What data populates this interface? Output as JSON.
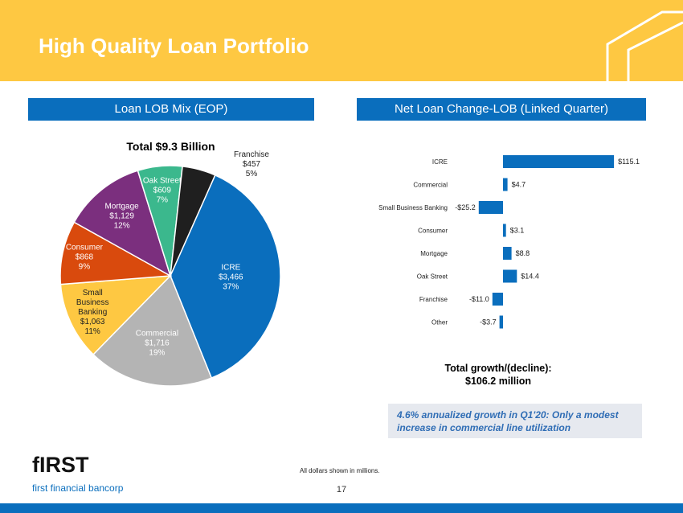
{
  "header": {
    "title": "High Quality Loan Portfolio"
  },
  "sections": {
    "left_title": "Loan LOB Mix (EOP)",
    "right_title": "Net Loan Change-LOB (Linked Quarter)"
  },
  "colors": {
    "header_bg": "#fec842",
    "accent_blue": "#0a6ebd",
    "bar_blue": "#0a6ebd"
  },
  "chart_data": [
    {
      "type": "pie",
      "title": "Total $9.3 Billion",
      "slices": [
        {
          "name": "ICRE",
          "value": 3466,
          "value_label": "$3,466",
          "percent": "37%",
          "color": "#0a6ebd",
          "label_color": "#ffffff"
        },
        {
          "name": "Commercial",
          "value": 1716,
          "value_label": "$1,716",
          "percent": "19%",
          "color": "#b4b4b4",
          "label_color": "#ffffff"
        },
        {
          "name": "Small Business Banking",
          "value": 1063,
          "value_label": "$1,063",
          "percent": "11%",
          "color": "#fec842",
          "label_color": "#222222"
        },
        {
          "name": "Consumer",
          "value": 868,
          "value_label": "$868",
          "percent": "9%",
          "color": "#d94a0d",
          "label_color": "#ffffff"
        },
        {
          "name": "Mortgage",
          "value": 1129,
          "value_label": "$1,129",
          "percent": "12%",
          "color": "#7b2f7e",
          "label_color": "#ffffff"
        },
        {
          "name": "Oak Street",
          "value": 609,
          "value_label": "$609",
          "percent": "7%",
          "color": "#3bb88d",
          "label_color": "#ffffff"
        },
        {
          "name": "Franchise",
          "value": 457,
          "value_label": "$457",
          "percent": "5%",
          "color": "#1f1f1f",
          "label_color": "#222222"
        }
      ]
    },
    {
      "type": "bar",
      "orientation": "horizontal",
      "categories": [
        "ICRE",
        "Commercial",
        "Small Business Banking",
        "Consumer",
        "Mortgage",
        "Oak Street",
        "Franchise",
        "Other"
      ],
      "values": [
        115.1,
        4.7,
        -25.2,
        3.1,
        8.8,
        14.4,
        -11.0,
        -3.7
      ],
      "value_labels": [
        "$115.1",
        "$4.7",
        "-$25.2",
        "$3.1",
        "$8.8",
        "$14.4",
        "-$11.0",
        "-$3.7"
      ]
    }
  ],
  "summary": {
    "total_line1": "Total growth/(decline):",
    "total_line2": "$106.2 million"
  },
  "callout": {
    "text": "4.6% annualized growth in Q1'20: Only a modest increase in commercial line utilization"
  },
  "logo": {
    "name": "fIRST",
    "subtitle": "first financial bancorp"
  },
  "footer": {
    "note": "All dollars shown in millions.",
    "page_number": "17"
  }
}
